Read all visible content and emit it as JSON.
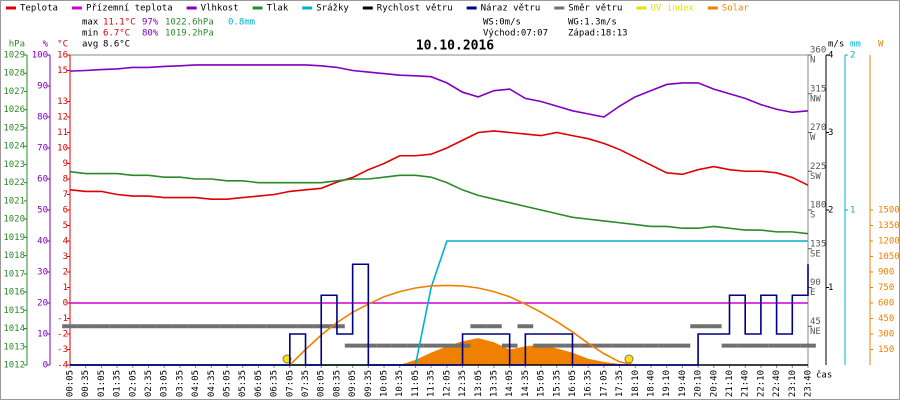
{
  "chart_data": {
    "type": "line",
    "title": "10.10.2016",
    "x_label": "čas",
    "x": [
      "00:05",
      "00:35",
      "01:05",
      "01:35",
      "02:05",
      "02:35",
      "03:05",
      "03:35",
      "04:05",
      "04:35",
      "05:05",
      "05:35",
      "06:05",
      "06:35",
      "07:05",
      "07:35",
      "08:05",
      "08:35",
      "09:05",
      "09:35",
      "10:05",
      "10:35",
      "11:05",
      "11:35",
      "12:05",
      "12:35",
      "13:05",
      "13:35",
      "14:05",
      "14:35",
      "15:05",
      "15:35",
      "16:05",
      "16:35",
      "17:05",
      "17:35",
      "18:10",
      "18:40",
      "19:10",
      "19:40",
      "20:10",
      "20:40",
      "21:10",
      "21:40",
      "22:10",
      "22:40",
      "23:10",
      "23:40"
    ],
    "axes": {
      "hpa": {
        "label": "hPa",
        "color": "#2a8a2a",
        "lim": [
          1012,
          1029
        ],
        "ticks": [
          1029,
          1028,
          1027,
          1026,
          1025,
          1024,
          1023,
          1022,
          1021,
          1020,
          1019,
          1018,
          1017,
          1016,
          1015,
          1014,
          1013,
          1012
        ]
      },
      "pct": {
        "label": "%",
        "color": "#8000c0",
        "lim": [
          0,
          100
        ],
        "ticks": [
          100,
          90,
          80,
          70,
          60,
          50,
          40,
          30,
          20,
          10,
          0
        ]
      },
      "temp": {
        "label": "°C",
        "color": "#e00000",
        "lim": [
          -4,
          16
        ],
        "ticks": [
          16,
          15,
          13,
          12,
          11,
          10,
          9,
          8,
          7,
          6,
          5,
          4,
          3,
          2,
          1,
          0,
          -1,
          -2,
          -3,
          -4
        ]
      },
      "ms": {
        "label": "m/s",
        "color": "#000000",
        "lim": [
          0,
          4
        ],
        "ticks": [
          4,
          3,
          2,
          1
        ]
      },
      "dir": {
        "color": "#555555",
        "lim": [
          0,
          360
        ],
        "ticks": [
          360,
          315,
          270,
          225,
          180,
          135,
          90,
          45
        ],
        "compass": [
          "N",
          "NW",
          "W",
          "SW",
          "S",
          "SE",
          "E",
          "NE"
        ]
      },
      "mm": {
        "label": "mm",
        "color": "#00b0d0",
        "lim": [
          0,
          2
        ],
        "ticks": [
          2,
          1
        ]
      },
      "solar": {
        "label": "W",
        "color": "#f08000",
        "lim": [
          0,
          3000
        ],
        "ticks": [
          1500,
          1350,
          1200,
          1050,
          900,
          750,
          600,
          450,
          300,
          150
        ]
      }
    },
    "series": [
      {
        "name": "Teplota",
        "color": "#e00000",
        "axis": "temp",
        "style": "line",
        "values": [
          7.3,
          7.2,
          7.2,
          7.0,
          6.9,
          6.9,
          6.8,
          6.8,
          6.8,
          6.7,
          6.7,
          6.8,
          6.9,
          7.0,
          7.2,
          7.3,
          7.4,
          7.8,
          8.1,
          8.6,
          9.0,
          9.5,
          9.5,
          9.6,
          10.0,
          10.5,
          11.0,
          11.1,
          11.0,
          10.9,
          10.8,
          11.0,
          10.8,
          10.6,
          10.3,
          9.9,
          9.4,
          8.9,
          8.4,
          8.3,
          8.6,
          8.8,
          8.6,
          8.5,
          8.5,
          8.4,
          8.1,
          7.6
        ]
      },
      {
        "name": "Přízemní teplota",
        "color": "#d000d0",
        "axis": "temp",
        "style": "line",
        "values": [
          0,
          0,
          0,
          0,
          0,
          0,
          0,
          0,
          0,
          0,
          0,
          0,
          0,
          0,
          0,
          0,
          0,
          0,
          0,
          0,
          0,
          0,
          0,
          0,
          0,
          0,
          0,
          0,
          0,
          0,
          0,
          0,
          0,
          0,
          0,
          0,
          0,
          0,
          0,
          0,
          0,
          0,
          0,
          0,
          0,
          0,
          0,
          0
        ]
      },
      {
        "name": "Vlhkost",
        "color": "#8000c0",
        "axis": "pct",
        "style": "line",
        "values": [
          94.8,
          95,
          95.3,
          95.5,
          96,
          96,
          96.3,
          96.5,
          96.8,
          96.8,
          96.8,
          96.8,
          96.8,
          96.8,
          96.8,
          96.8,
          96.5,
          96,
          95,
          94.5,
          94,
          93.5,
          93.3,
          93,
          91,
          88,
          86.5,
          88.5,
          89,
          86,
          85,
          83.5,
          82,
          81,
          80,
          83.5,
          86.5,
          88.5,
          90.5,
          91,
          91,
          89,
          87.5,
          86,
          84,
          82.5,
          81.5,
          82
        ]
      },
      {
        "name": "Tlak",
        "color": "#2a8a2a",
        "axis": "hpa",
        "style": "line",
        "values": [
          1022.6,
          1022.5,
          1022.5,
          1022.5,
          1022.4,
          1022.4,
          1022.3,
          1022.3,
          1022.2,
          1022.2,
          1022.1,
          1022.1,
          1022.0,
          1022.0,
          1022.0,
          1022.0,
          1022.0,
          1022.1,
          1022.2,
          1022.2,
          1022.3,
          1022.4,
          1022.4,
          1022.3,
          1022.0,
          1021.6,
          1021.3,
          1021.1,
          1020.9,
          1020.7,
          1020.5,
          1020.3,
          1020.1,
          1020.0,
          1019.9,
          1019.8,
          1019.7,
          1019.6,
          1019.6,
          1019.5,
          1019.5,
          1019.6,
          1019.5,
          1019.4,
          1019.4,
          1019.3,
          1019.3,
          1019.2
        ]
      },
      {
        "name": "Srážky",
        "color": "#00b0d0",
        "axis": "mm",
        "style": "line",
        "values": [
          0,
          0,
          0,
          0,
          0,
          0,
          0,
          0,
          0,
          0,
          0,
          0,
          0,
          0,
          0,
          0,
          0,
          0,
          0,
          0,
          0,
          0,
          0,
          0.5,
          0.8,
          0.8,
          0.8,
          0.8,
          0.8,
          0.8,
          0.8,
          0.8,
          0.8,
          0.8,
          0.8,
          0.8,
          0.8,
          0.8,
          0.8,
          0.8,
          0.8,
          0.8,
          0.8,
          0.8,
          0.8,
          0.8,
          0.8,
          0.8
        ]
      },
      {
        "name": "Rychlost větru",
        "color": "#000000",
        "axis": "ms",
        "style": "line",
        "values": [
          0,
          0,
          0,
          0,
          0,
          0,
          0,
          0,
          0,
          0,
          0,
          0,
          0,
          0,
          0,
          0,
          0,
          0,
          0,
          0,
          0,
          0,
          0,
          0,
          0,
          0,
          0,
          0,
          0,
          0,
          0,
          0,
          0,
          0,
          0,
          0,
          0,
          0,
          0,
          0,
          0,
          0,
          0,
          0,
          0,
          0,
          0,
          0
        ]
      },
      {
        "name": "Náraz větru",
        "color": "#000080",
        "axis": "ms",
        "style": "step",
        "values": [
          0,
          0,
          0,
          0,
          0,
          0,
          0,
          0,
          0,
          0,
          0,
          0,
          0,
          0,
          0.4,
          0,
          0.9,
          0.4,
          1.3,
          0,
          0,
          0,
          0,
          0,
          0,
          0.4,
          0.4,
          0.4,
          0,
          0.4,
          0.4,
          0.4,
          0,
          0,
          0,
          0,
          0,
          0,
          0,
          0,
          0.4,
          0.4,
          0.9,
          0.4,
          0.9,
          0.4,
          0.9,
          1.3
        ]
      },
      {
        "name": "Směr větru",
        "color": "#707070",
        "axis": "dir",
        "style": "segments",
        "values": [
          45,
          45,
          45,
          45,
          45,
          45,
          45,
          45,
          45,
          45,
          45,
          45,
          45,
          45,
          45,
          45,
          45,
          45,
          22.5,
          22.5,
          22.5,
          22.5,
          22.5,
          22.5,
          22.5,
          22.5,
          45,
          45,
          22.5,
          45,
          22.5,
          22.5,
          22.5,
          22.5,
          22.5,
          22.5,
          22.5,
          22.5,
          22.5,
          22.5,
          45,
          45,
          22.5,
          22.5,
          22.5,
          22.5,
          22.5,
          22.5
        ]
      },
      {
        "name": "UV index",
        "color": "#e8e000",
        "axis": "solar",
        "style": "line",
        "values": [
          null,
          null,
          null,
          null,
          null,
          null,
          null,
          null,
          null,
          null,
          null,
          null,
          null,
          null,
          null,
          null,
          null,
          null,
          null,
          null,
          null,
          null,
          null,
          null,
          null,
          null,
          null,
          null,
          null,
          null,
          null,
          null,
          null,
          null,
          null,
          null,
          null,
          null,
          null,
          null,
          null,
          null,
          null,
          null,
          null,
          null,
          null,
          null
        ]
      },
      {
        "name": "Solar",
        "color": "#f08000",
        "axis": "solar",
        "style": "area",
        "values": [
          0,
          0,
          0,
          0,
          0,
          0,
          0,
          0,
          0,
          0,
          0,
          0,
          0,
          0,
          0,
          0,
          0,
          0,
          0,
          0,
          0,
          0,
          50,
          120,
          180,
          230,
          260,
          220,
          150,
          180,
          200,
          160,
          120,
          60,
          30,
          10,
          0,
          0,
          0,
          0,
          0,
          0,
          0,
          0,
          0,
          0,
          0,
          0
        ]
      },
      {
        "color": "#f08000",
        "axis": "solar",
        "style": "line",
        "values": [
          null,
          null,
          null,
          null,
          null,
          null,
          null,
          null,
          null,
          null,
          null,
          null,
          null,
          null,
          0,
          150,
          290,
          410,
          510,
          590,
          660,
          710,
          745,
          765,
          770,
          765,
          745,
          710,
          660,
          590,
          510,
          420,
          320,
          210,
          110,
          30,
          0,
          null,
          null,
          null,
          null,
          null,
          null,
          null,
          null,
          null,
          null,
          null
        ]
      }
    ],
    "stats": {
      "max_label": "max",
      "max_temp": "11.1°C",
      "max_hum": "97%",
      "max_press": "1022.6hPa",
      "rain": "0.8mm",
      "min_label": "min",
      "min_temp": "6.7°C",
      "min_hum": "80%",
      "min_press": "1019.2hPa",
      "avg_label": "avg",
      "avg_temp": "8.6°C",
      "ws": "WS:0m/s",
      "wg": "WG:1.3m/s",
      "sunrise": "Východ:07:07",
      "sunset": "Západ:18:13"
    }
  }
}
